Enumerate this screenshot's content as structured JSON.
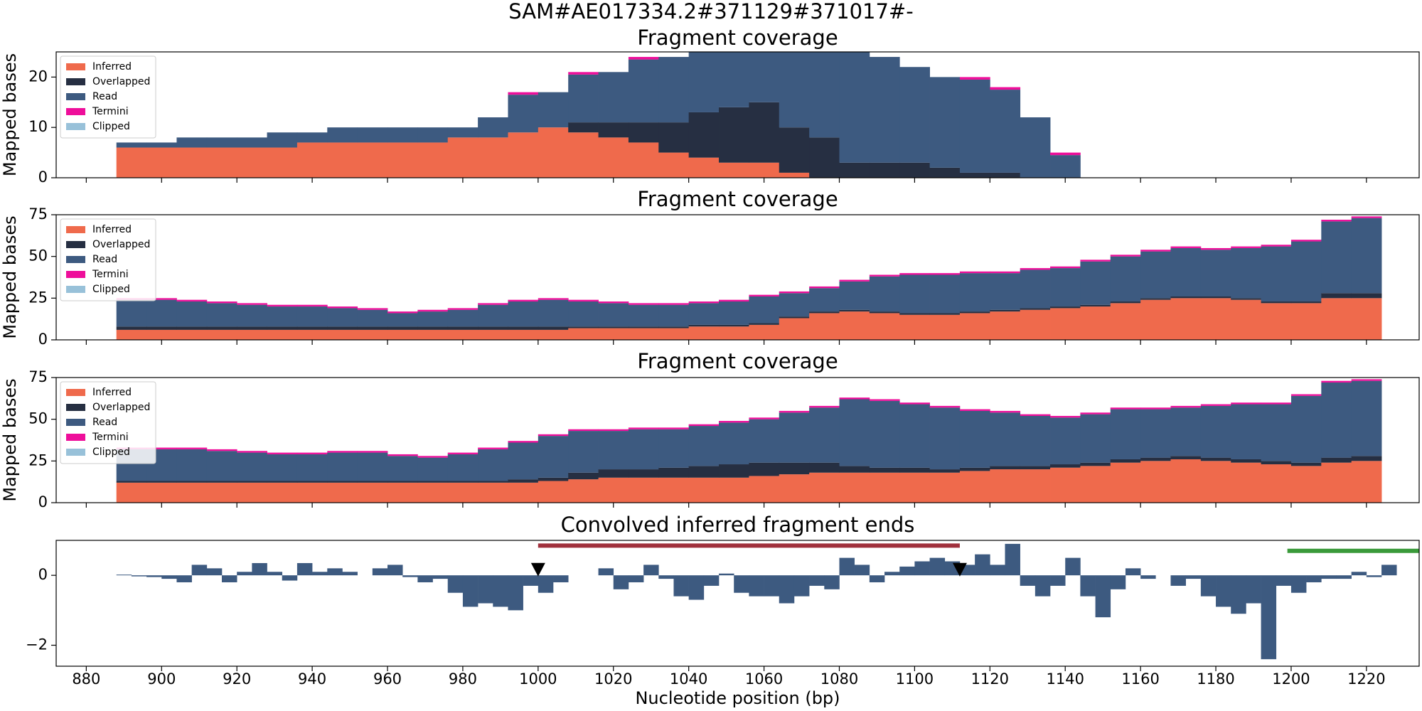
{
  "title": "SAM#AE017334.2#371129#371017#-",
  "chart_data": [
    {
      "type": "stacked_step",
      "title": "Fragment coverage",
      "ylabel": "Mapped bases",
      "legend": "upper left",
      "xlim": [
        872,
        1234
      ],
      "xticks": [
        880,
        900,
        920,
        940,
        960,
        980,
        1000,
        1020,
        1040,
        1060,
        1080,
        1100,
        1120,
        1140,
        1160,
        1180,
        1200,
        1220
      ],
      "ylim": [
        0,
        25
      ],
      "yticks": [
        0,
        10,
        20
      ],
      "x": [
        888,
        896,
        904,
        912,
        920,
        928,
        936,
        944,
        952,
        960,
        968,
        976,
        984,
        992,
        1000,
        1008,
        1016,
        1024,
        1032,
        1040,
        1048,
        1056,
        1064,
        1072,
        1080,
        1088,
        1096,
        1104,
        1112,
        1120,
        1128,
        1136,
        1144,
        1152,
        1160,
        1168,
        1176,
        1184,
        1192,
        1200,
        1208,
        1216
      ],
      "series": [
        {
          "name": "Inferred",
          "color": "#ef6a4c",
          "values": [
            6,
            6,
            6,
            6,
            6,
            6,
            7,
            7,
            7,
            7,
            7,
            8,
            8,
            9,
            10,
            9,
            8,
            7,
            5,
            4,
            3,
            3,
            1,
            0,
            0,
            0,
            0,
            0,
            0,
            0,
            0,
            0,
            0,
            0,
            0,
            0,
            0,
            0,
            0,
            0,
            0,
            0
          ]
        },
        {
          "name": "Overlapped",
          "color": "#262f42",
          "values": [
            0,
            0,
            0,
            0,
            0,
            0,
            0,
            0,
            0,
            0,
            0,
            0,
            0,
            0,
            0,
            2,
            3,
            4,
            6,
            9,
            11,
            12,
            9,
            8,
            3,
            3,
            3,
            2,
            1,
            1,
            0,
            0,
            0,
            0,
            0,
            0,
            0,
            0,
            0,
            0,
            0,
            0
          ]
        },
        {
          "name": "Read",
          "color": "#3d5a80",
          "values": [
            1,
            1,
            2,
            2,
            2,
            3,
            2,
            3,
            3,
            3,
            3,
            2,
            4,
            7.5,
            7,
            9.5,
            10,
            12.5,
            13,
            12,
            11,
            10,
            15,
            17,
            22,
            21,
            19,
            18,
            18.5,
            16.5,
            12,
            4.5,
            0,
            0,
            0,
            0,
            0,
            0,
            0,
            0,
            0,
            0
          ]
        },
        {
          "name": "Termini",
          "color": "#ee0e9a",
          "values": [
            0,
            0,
            0,
            0,
            0,
            0,
            0,
            0,
            0,
            0,
            0,
            0,
            0,
            0.5,
            0,
            0.5,
            0,
            0.5,
            0,
            0,
            0,
            0,
            0,
            0,
            0,
            0,
            0,
            0,
            0.5,
            0.5,
            0,
            0.5,
            0,
            0,
            0,
            0,
            0,
            0,
            0,
            0,
            0,
            0
          ]
        },
        {
          "name": "Clipped",
          "color": "#98c1d9",
          "values": [
            0,
            0,
            0,
            0,
            0,
            0,
            0,
            0,
            0,
            0,
            0,
            0,
            0,
            0,
            0,
            0,
            0,
            0,
            0,
            0,
            0,
            0,
            0,
            0,
            0,
            0,
            0,
            0,
            0,
            0,
            0,
            0,
            0,
            0,
            0,
            0,
            0,
            0,
            0,
            0,
            0,
            0
          ]
        }
      ]
    },
    {
      "type": "stacked_step",
      "title": "Fragment coverage",
      "ylabel": "Mapped bases",
      "legend": "upper left",
      "xlim": [
        872,
        1234
      ],
      "xticks": [
        880,
        900,
        920,
        940,
        960,
        980,
        1000,
        1020,
        1040,
        1060,
        1080,
        1100,
        1120,
        1140,
        1160,
        1180,
        1200,
        1220
      ],
      "ylim": [
        0,
        75
      ],
      "yticks": [
        0,
        25,
        50,
        75
      ],
      "x": [
        888,
        896,
        904,
        912,
        920,
        928,
        936,
        944,
        952,
        960,
        968,
        976,
        984,
        992,
        1000,
        1008,
        1016,
        1024,
        1032,
        1040,
        1048,
        1056,
        1064,
        1072,
        1080,
        1088,
        1096,
        1104,
        1112,
        1120,
        1128,
        1136,
        1144,
        1152,
        1160,
        1168,
        1176,
        1184,
        1192,
        1200,
        1208,
        1216
      ],
      "series": [
        {
          "name": "Inferred",
          "color": "#ef6a4c",
          "values": [
            6,
            6,
            6,
            6,
            6,
            6,
            6,
            6,
            6,
            6,
            6,
            6,
            6,
            6,
            6,
            7,
            7,
            7,
            7,
            8,
            8,
            9,
            13,
            16,
            17,
            16,
            15,
            15,
            16,
            17,
            18,
            19,
            20,
            22,
            24,
            25,
            25,
            24,
            22,
            22,
            25,
            25
          ]
        },
        {
          "name": "Overlapped",
          "color": "#262f42",
          "values": [
            2,
            2,
            2,
            2,
            2,
            2,
            2,
            2,
            2,
            2,
            2,
            2,
            2,
            2,
            2,
            1,
            1,
            1,
            1,
            1,
            1,
            1,
            1,
            1,
            1,
            1,
            1,
            1,
            1,
            1,
            1,
            1,
            1,
            1,
            1,
            1,
            1,
            1,
            1,
            1,
            3,
            3
          ]
        },
        {
          "name": "Read",
          "color": "#3d5a80",
          "values": [
            16,
            16,
            15,
            14,
            13,
            12,
            12,
            11,
            10,
            8,
            9,
            10,
            13,
            15,
            16,
            15,
            14,
            13,
            13,
            13,
            14,
            16,
            14,
            14,
            17,
            21,
            23,
            23,
            23,
            22,
            23,
            23,
            26,
            27,
            28,
            29,
            28,
            30,
            33,
            36,
            43,
            45
          ]
        },
        {
          "name": "Termini",
          "color": "#ee0e9a",
          "values": [
            1,
            1,
            1,
            1,
            1,
            1,
            1,
            1,
            1,
            1,
            1,
            1,
            1,
            1,
            1,
            1,
            1,
            1,
            1,
            1,
            1,
            1,
            1,
            1,
            1,
            1,
            1,
            1,
            1,
            1,
            1,
            1,
            1,
            1,
            1,
            1,
            1,
            1,
            1,
            1,
            1,
            1
          ]
        },
        {
          "name": "Clipped",
          "color": "#98c1d9",
          "values": [
            0,
            0,
            0,
            0,
            0,
            0,
            0,
            0,
            0,
            0,
            0,
            0,
            0,
            0,
            0,
            0,
            0,
            0,
            0,
            0,
            0,
            0,
            0,
            0,
            0,
            0,
            0,
            0,
            0,
            0,
            0,
            0,
            0,
            0,
            0,
            0,
            0,
            0,
            0,
            0,
            0,
            0
          ]
        }
      ]
    },
    {
      "type": "stacked_step",
      "title": "Fragment coverage",
      "ylabel": "Mapped bases",
      "legend": "upper left",
      "xlim": [
        872,
        1234
      ],
      "xticks": [
        880,
        900,
        920,
        940,
        960,
        980,
        1000,
        1020,
        1040,
        1060,
        1080,
        1100,
        1120,
        1140,
        1160,
        1180,
        1200,
        1220
      ],
      "ylim": [
        0,
        75
      ],
      "yticks": [
        0,
        25,
        50,
        75
      ],
      "x": [
        888,
        896,
        904,
        912,
        920,
        928,
        936,
        944,
        952,
        960,
        968,
        976,
        984,
        992,
        1000,
        1008,
        1016,
        1024,
        1032,
        1040,
        1048,
        1056,
        1064,
        1072,
        1080,
        1088,
        1096,
        1104,
        1112,
        1120,
        1128,
        1136,
        1144,
        1152,
        1160,
        1168,
        1176,
        1184,
        1192,
        1200,
        1208,
        1216
      ],
      "series": [
        {
          "name": "Inferred",
          "color": "#ef6a4c",
          "values": [
            12,
            12,
            12,
            12,
            12,
            12,
            12,
            12,
            12,
            12,
            12,
            12,
            12,
            12,
            13,
            14,
            15,
            15,
            15,
            15,
            15,
            16,
            17,
            18,
            18,
            18,
            18,
            18,
            19,
            20,
            20,
            21,
            22,
            24,
            25,
            26,
            25,
            24,
            23,
            22,
            24,
            25
          ]
        },
        {
          "name": "Overlapped",
          "color": "#262f42",
          "values": [
            1,
            1,
            1,
            1,
            1,
            1,
            1,
            1,
            1,
            1,
            1,
            1,
            1,
            2,
            2,
            4,
            5,
            5,
            6,
            7,
            8,
            8,
            7,
            6,
            4,
            3,
            3,
            2,
            2,
            2,
            2,
            2,
            2,
            2,
            2,
            2,
            2,
            2,
            2,
            2,
            3,
            3
          ]
        },
        {
          "name": "Read",
          "color": "#3d5a80",
          "values": [
            19,
            19,
            19,
            18,
            17,
            16,
            16,
            17,
            17,
            15,
            14,
            16,
            19,
            22,
            25,
            25,
            23,
            24,
            23,
            24,
            25,
            26,
            30,
            33,
            40,
            40,
            38,
            37,
            34,
            32,
            30,
            28,
            29,
            30,
            29,
            29,
            31,
            33,
            34,
            40,
            45,
            45
          ]
        },
        {
          "name": "Termini",
          "color": "#ee0e9a",
          "values": [
            1,
            1,
            1,
            1,
            1,
            1,
            1,
            1,
            1,
            1,
            1,
            1,
            1,
            1,
            1,
            1,
            1,
            1,
            1,
            1,
            1,
            1,
            1,
            1,
            1,
            1,
            1,
            1,
            1,
            1,
            1,
            1,
            1,
            1,
            1,
            1,
            1,
            1,
            1,
            1,
            1,
            1
          ]
        },
        {
          "name": "Clipped",
          "color": "#98c1d9",
          "values": [
            0,
            0,
            0,
            0,
            0,
            0,
            0,
            0,
            0,
            0,
            0,
            0,
            0,
            0,
            0,
            0,
            0,
            0,
            0,
            0,
            0,
            0,
            0,
            0,
            0,
            0,
            0,
            0,
            0,
            0,
            0,
            0,
            0,
            0,
            0,
            0,
            0,
            0,
            0,
            0,
            0,
            0
          ]
        }
      ]
    },
    {
      "type": "bar",
      "title": "Convolved inferred fragment ends",
      "xlabel": "Nucleotide position (bp)",
      "xlim": [
        872,
        1234
      ],
      "xticks": [
        880,
        900,
        920,
        940,
        960,
        980,
        1000,
        1020,
        1040,
        1060,
        1080,
        1100,
        1120,
        1140,
        1160,
        1180,
        1200,
        1220
      ],
      "ylim": [
        -2.6,
        1
      ],
      "yticks": [
        {
          "value": -2,
          "label": "−2"
        },
        0
      ],
      "color": "#3d5a80",
      "x": [
        888,
        892,
        896,
        900,
        904,
        908,
        912,
        916,
        920,
        924,
        928,
        932,
        936,
        940,
        944,
        948,
        952,
        956,
        960,
        964,
        968,
        972,
        976,
        980,
        984,
        988,
        992,
        996,
        1000,
        1004,
        1008,
        1012,
        1016,
        1020,
        1024,
        1028,
        1032,
        1036,
        1040,
        1044,
        1048,
        1052,
        1056,
        1060,
        1064,
        1068,
        1072,
        1076,
        1080,
        1084,
        1088,
        1092,
        1096,
        1100,
        1104,
        1108,
        1112,
        1116,
        1120,
        1124,
        1128,
        1132,
        1136,
        1140,
        1144,
        1148,
        1152,
        1156,
        1160,
        1164,
        1168,
        1172,
        1176,
        1180,
        1184,
        1188,
        1192,
        1196,
        1200,
        1204,
        1208,
        1212,
        1216,
        1220,
        1224
      ],
      "values": [
        0.02,
        -0.03,
        -0.05,
        -0.1,
        -0.2,
        0.3,
        0.2,
        -0.2,
        0.1,
        0.35,
        0.1,
        -0.15,
        0.35,
        0.1,
        0.2,
        0.1,
        0,
        0.2,
        0.3,
        -0.05,
        -0.2,
        -0.1,
        -0.5,
        -0.9,
        -0.8,
        -0.9,
        -1.0,
        -0.3,
        -0.5,
        -0.2,
        0,
        0,
        0.2,
        -0.4,
        -0.2,
        0.3,
        -0.1,
        -0.6,
        -0.7,
        -0.3,
        0.05,
        -0.5,
        -0.6,
        -0.6,
        -0.8,
        -0.6,
        -0.3,
        -0.4,
        0.5,
        0.3,
        -0.2,
        0.1,
        0.25,
        0.4,
        0.5,
        0.4,
        0.3,
        0.6,
        0.3,
        0.9,
        -0.3,
        -0.6,
        -0.3,
        0.5,
        -0.6,
        -1.2,
        -0.4,
        0.2,
        -0.1,
        0,
        -0.3,
        -0.1,
        -0.6,
        -0.9,
        -1.1,
        -0.8,
        -2.4,
        -0.3,
        -0.5,
        -0.2,
        -0.1,
        -0.1,
        0.1,
        -0.05,
        0.3
      ],
      "markers": {
        "color": "#000000",
        "x": [
          1000,
          1112
        ],
        "y": [
          0.15,
          0.15
        ]
      },
      "segments": [
        {
          "color": "#a0303c",
          "x": [
            1000,
            1112
          ],
          "y": 0.85
        },
        {
          "color": "#3a9a3a",
          "x": [
            1199,
            1234
          ],
          "y": 0.7
        }
      ]
    }
  ]
}
